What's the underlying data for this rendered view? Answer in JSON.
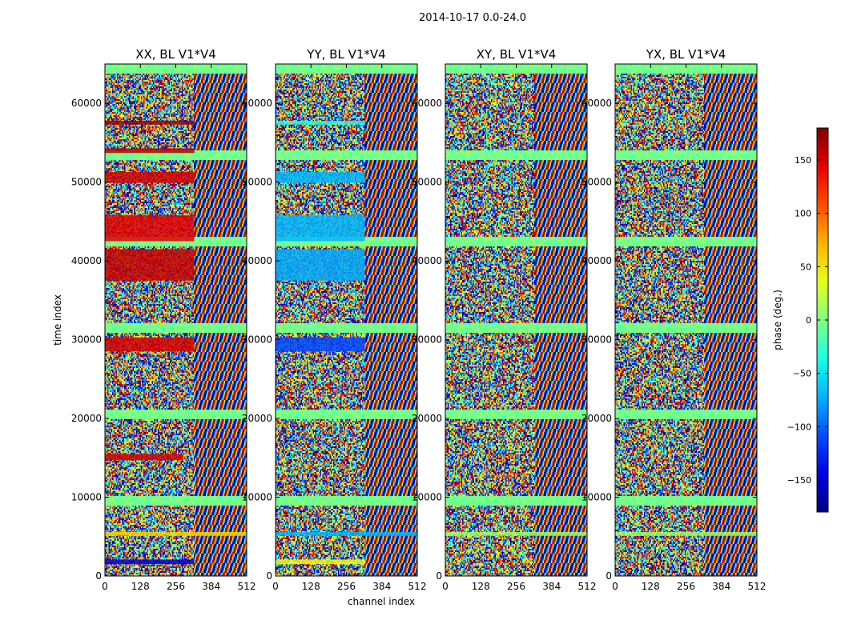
{
  "figure_title": "2014-10-17 0.0-24.0",
  "chart_data": {
    "type": "heatmap",
    "suptitle": "2014-10-17 0.0-24.0",
    "xlabel": "channel index",
    "ylabel": "time index",
    "xlim": [
      0,
      512
    ],
    "ylim": [
      0,
      65000
    ],
    "x_ticks": [
      0,
      128,
      256,
      384,
      512
    ],
    "y_ticks": [
      0,
      10000,
      20000,
      30000,
      40000,
      50000,
      60000
    ],
    "colormap": "jet",
    "colorbar": {
      "label": "phase (deg.)",
      "range": [
        -180,
        180
      ],
      "ticks": [
        150,
        100,
        50,
        0,
        -50,
        -100,
        -150
      ],
      "tick_labels": [
        "150",
        "100",
        "50",
        "0",
        "−50",
        "−100",
        "−150"
      ]
    },
    "panels": [
      {
        "title": "XX, BL V1*V4",
        "bands": [
          {
            "t0": 1500,
            "t1": 2100,
            "x1": 0.63,
            "phase": -150
          },
          {
            "t0": 5100,
            "t1": 5600,
            "x1": 1.0,
            "phase": 60
          },
          {
            "t0": 14700,
            "t1": 15500,
            "x1": 0.55,
            "phase": 150
          },
          {
            "t0": 28500,
            "t1": 30300,
            "x1": 0.63,
            "phase": 150
          },
          {
            "t0": 37500,
            "t1": 41500,
            "x1": 0.63,
            "phase": 155
          },
          {
            "t0": 42500,
            "t1": 45800,
            "x1": 0.63,
            "phase": 145
          },
          {
            "t0": 49900,
            "t1": 51300,
            "x1": 0.63,
            "phase": 150
          },
          {
            "t0": 53700,
            "t1": 54300,
            "x1": 0.63,
            "phase": 160
          },
          {
            "t0": 57300,
            "t1": 57800,
            "x1": 0.63,
            "phase": 170
          }
        ]
      },
      {
        "title": "YY, BL V1*V4",
        "bands": [
          {
            "t0": 1500,
            "t1": 2100,
            "x1": 0.63,
            "phase": 40
          },
          {
            "t0": 5100,
            "t1": 5600,
            "x1": 1.0,
            "phase": -70
          },
          {
            "t0": 28500,
            "t1": 30300,
            "x1": 0.63,
            "phase": -110
          },
          {
            "t0": 37500,
            "t1": 41500,
            "x1": 0.63,
            "phase": -75
          },
          {
            "t0": 42500,
            "t1": 45800,
            "x1": 0.63,
            "phase": -70
          },
          {
            "t0": 49900,
            "t1": 51300,
            "x1": 0.63,
            "phase": -70
          },
          {
            "t0": 57300,
            "t1": 57800,
            "x1": 0.63,
            "phase": -30
          }
        ]
      },
      {
        "title": "XY, BL V1*V4",
        "bands": [
          {
            "t0": 5100,
            "t1": 5600,
            "x1": 1.0,
            "phase": 10
          }
        ]
      },
      {
        "title": "YX, BL V1*V4",
        "bands": [
          {
            "t0": 5100,
            "t1": 5600,
            "x1": 1.0,
            "phase": 10
          }
        ]
      }
    ]
  }
}
